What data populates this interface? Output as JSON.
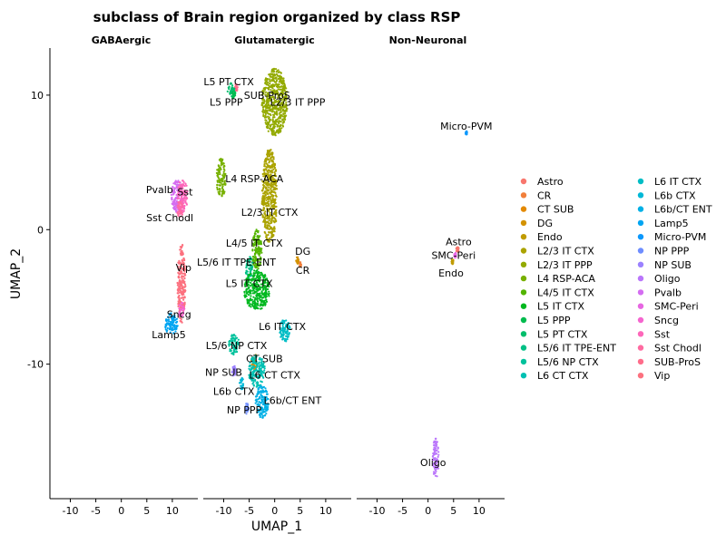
{
  "chart_data": {
    "type": "scatter",
    "title": "subclass of Brain region organized by class RSP",
    "xlabel": "UMAP_1",
    "ylabel": "UMAP_2",
    "xlim": [
      -14,
      15
    ],
    "ylim": [
      -20,
      13.5
    ],
    "xticks": [
      -10,
      -5,
      0,
      5,
      10
    ],
    "xtick_labels": [
      "-10",
      "-5",
      "0",
      "5",
      "10"
    ],
    "yticks": [
      10,
      0,
      -10
    ],
    "ytick_labels": [
      "10",
      "0",
      "-10"
    ],
    "grid": false,
    "legend_position": "right",
    "legend": [
      {
        "name": "Astro",
        "color": "#F8766D"
      },
      {
        "name": "CR",
        "color": "#F17F3B"
      },
      {
        "name": "CT SUB",
        "color": "#E38900"
      },
      {
        "name": "DG",
        "color": "#D39200"
      },
      {
        "name": "Endo",
        "color": "#C09B00"
      },
      {
        "name": "L2/3 IT CTX",
        "color": "#ABA300"
      },
      {
        "name": "L2/3 IT PPP",
        "color": "#93AA00"
      },
      {
        "name": "L4 RSP-ACA",
        "color": "#77B000"
      },
      {
        "name": "L4/5 IT CTX",
        "color": "#53B400"
      },
      {
        "name": "L5 IT CTX",
        "color": "#00B81F"
      },
      {
        "name": "L5 PPP",
        "color": "#00BB4E"
      },
      {
        "name": "L5 PT CTX",
        "color": "#00BE6C"
      },
      {
        "name": "L5/6 IT TPE-ENT",
        "color": "#00C085"
      },
      {
        "name": "L5/6 NP CTX",
        "color": "#00C19C"
      },
      {
        "name": "L6 CT CTX",
        "color": "#00C0B2"
      },
      {
        "name": "L6 IT CTX",
        "color": "#00BDC5"
      },
      {
        "name": "L6b CTX",
        "color": "#00B8D7"
      },
      {
        "name": "L6b/CT ENT",
        "color": "#00B0E6"
      },
      {
        "name": "Lamp5",
        "color": "#00A5F2"
      },
      {
        "name": "Micro-PVM",
        "color": "#0C98FC"
      },
      {
        "name": "NP PPP",
        "color": "#6E8DFF"
      },
      {
        "name": "NP SUB",
        "color": "#9B81FF"
      },
      {
        "name": "Oligo",
        "color": "#BA76FB"
      },
      {
        "name": "Pvalb",
        "color": "#D46DF1"
      },
      {
        "name": "SMC-Peri",
        "color": "#E767E2"
      },
      {
        "name": "Sncg",
        "color": "#F565CF"
      },
      {
        "name": "Sst",
        "color": "#FD67BA"
      },
      {
        "name": "Sst Chodl",
        "color": "#FF6BA1"
      },
      {
        "name": "SUB-ProS",
        "color": "#FF6C8A"
      },
      {
        "name": "Vip",
        "color": "#FC717F"
      }
    ],
    "panels": [
      {
        "name": "GABAergic",
        "clusters": [
          {
            "label": "Pvalb",
            "cx": 11,
            "cy": 2.5,
            "rx": 1.2,
            "ry": 1.2,
            "color": "#D46DF1",
            "lx": 7.5,
            "ly": 3
          },
          {
            "label": "Sst",
            "cx": 12,
            "cy": 2.5,
            "rx": 1.0,
            "ry": 1.3,
            "color": "#FD67BA",
            "lx": 12.5,
            "ly": 2.8
          },
          {
            "label": "Sst Chodl",
            "cx": 11.5,
            "cy": 1.5,
            "rx": 0.6,
            "ry": 0.6,
            "color": "#FF6BA1",
            "lx": 9.5,
            "ly": 0.9
          },
          {
            "label": "Vip",
            "cx": 11.8,
            "cy": -4.0,
            "rx": 0.8,
            "ry": 3.0,
            "color": "#FC717F",
            "lx": 12.2,
            "ly": -2.8
          },
          {
            "label": "Sncg",
            "cx": 11.8,
            "cy": -6.0,
            "rx": 0.6,
            "ry": 0.6,
            "color": "#F565CF",
            "lx": 11.3,
            "ly": -6.3
          },
          {
            "label": "Lamp5",
            "cx": 9.8,
            "cy": -7.0,
            "rx": 1.3,
            "ry": 0.8,
            "color": "#00A5F2",
            "lx": 9.3,
            "ly": -7.8
          }
        ]
      },
      {
        "name": "Glutamatergic",
        "clusters": [
          {
            "label": "L5 PT CTX",
            "cx": -8.5,
            "cy": 10.4,
            "rx": 0.8,
            "ry": 0.5,
            "color": "#00BE6C",
            "lx": -9,
            "ly": 11.0
          },
          {
            "label": "L5 PPP",
            "cx": -8.0,
            "cy": 10.0,
            "rx": 0.4,
            "ry": 0.3,
            "color": "#00BB4E",
            "lx": -9.5,
            "ly": 9.5
          },
          {
            "label": "SUB-ProS",
            "cx": -7.5,
            "cy": 10.6,
            "rx": 0.3,
            "ry": 0.3,
            "color": "#FF6C8A",
            "lx": -1.5,
            "ly": 10.0
          },
          {
            "label": "L2/3 IT PPP",
            "cx": 0,
            "cy": 9.5,
            "rx": 2.5,
            "ry": 2.5,
            "color": "#93AA00",
            "lx": 4.5,
            "ly": 9.5
          },
          {
            "label": "L4 RSP-ACA",
            "cx": -10.5,
            "cy": 3.8,
            "rx": 0.9,
            "ry": 1.5,
            "color": "#77B000",
            "lx": -4,
            "ly": 3.8
          },
          {
            "label": "L2/3 IT CTX",
            "cx": -1,
            "cy": 2.5,
            "rx": 1.5,
            "ry": 3.5,
            "color": "#ABA300",
            "lx": -1,
            "ly": 1.3
          },
          {
            "label": "L4/5 IT CTX",
            "cx": -3.5,
            "cy": -1.5,
            "rx": 1.0,
            "ry": 1.5,
            "color": "#53B400",
            "lx": -4,
            "ly": -1.0
          },
          {
            "label": "L5/6 IT TPE-ENT",
            "cx": -5,
            "cy": -2.8,
            "rx": 0.8,
            "ry": 0.8,
            "color": "#00C085",
            "lx": -7.5,
            "ly": -2.4
          },
          {
            "label": "DG",
            "cx": 4.5,
            "cy": -2.3,
            "rx": 0.3,
            "ry": 0.3,
            "color": "#D39200",
            "lx": 5.5,
            "ly": -1.6
          },
          {
            "label": "CR",
            "cx": 5.0,
            "cy": -2.6,
            "rx": 0.2,
            "ry": 0.2,
            "color": "#F17F3B",
            "lx": 5.5,
            "ly": -3.0
          },
          {
            "label": "L5 IT CTX",
            "cx": -3.5,
            "cy": -4.5,
            "rx": 2.5,
            "ry": 1.5,
            "color": "#00B81F",
            "lx": -5,
            "ly": -4.0
          },
          {
            "label": "L6 IT CTX",
            "cx": 2,
            "cy": -7.5,
            "rx": 1.0,
            "ry": 0.9,
            "color": "#00BDC5",
            "lx": 1.5,
            "ly": -7.2
          },
          {
            "label": "L5/6 NP CTX",
            "cx": -8,
            "cy": -8.5,
            "rx": 1.0,
            "ry": 0.8,
            "color": "#00C19C",
            "lx": -7.5,
            "ly": -8.6
          },
          {
            "label": "CT SUB",
            "cx": -4.0,
            "cy": -9.8,
            "rx": 0.6,
            "ry": 0.6,
            "color": "#E38900",
            "lx": -2,
            "ly": -9.6
          },
          {
            "label": "NP SUB",
            "cx": -8.0,
            "cy": -10.5,
            "rx": 0.4,
            "ry": 0.4,
            "color": "#9B81FF",
            "lx": -10,
            "ly": -10.6
          },
          {
            "label": "L6 CT CTX",
            "cx": -3.5,
            "cy": -10.5,
            "rx": 1.6,
            "ry": 1.2,
            "color": "#00C0B2",
            "lx": 0,
            "ly": -10.8
          },
          {
            "label": "L6b CTX",
            "cx": -6.5,
            "cy": -11.5,
            "rx": 0.5,
            "ry": 0.5,
            "color": "#00B8D7",
            "lx": -8,
            "ly": -12.0
          },
          {
            "label": "L6b/CT ENT",
            "cx": -2.5,
            "cy": -12.8,
            "rx": 1.3,
            "ry": 1.2,
            "color": "#00B0E6",
            "lx": 3.5,
            "ly": -12.7
          },
          {
            "label": "NP PPP",
            "cx": -5.5,
            "cy": -13.3,
            "rx": 0.4,
            "ry": 0.4,
            "color": "#6E8DFF",
            "lx": -6,
            "ly": -13.4
          }
        ]
      },
      {
        "name": "Non-Neuronal",
        "clusters": [
          {
            "label": "Micro-PVM",
            "cx": 7.5,
            "cy": 7.2,
            "rx": 0.15,
            "ry": 0.15,
            "color": "#0C98FC",
            "lx": 7.5,
            "ly": 7.7
          },
          {
            "label": "Astro",
            "cx": 5.8,
            "cy": -1.5,
            "rx": 0.3,
            "ry": 0.2,
            "color": "#F8766D",
            "lx": 6.0,
            "ly": -0.9
          },
          {
            "label": "SMC-Peri",
            "cx": 5.3,
            "cy": -1.9,
            "rx": 0.2,
            "ry": 0.2,
            "color": "#E767E2",
            "lx": 5.0,
            "ly": -1.9
          },
          {
            "label": "Endo",
            "cx": 4.8,
            "cy": -2.4,
            "rx": 0.2,
            "ry": 0.2,
            "color": "#C09B00",
            "lx": 4.5,
            "ly": -3.2
          },
          {
            "label": "Oligo",
            "cx": 1.5,
            "cy": -17.0,
            "rx": 0.6,
            "ry": 1.5,
            "color": "#BA76FB",
            "lx": 1.0,
            "ly": -17.3
          }
        ]
      }
    ]
  }
}
